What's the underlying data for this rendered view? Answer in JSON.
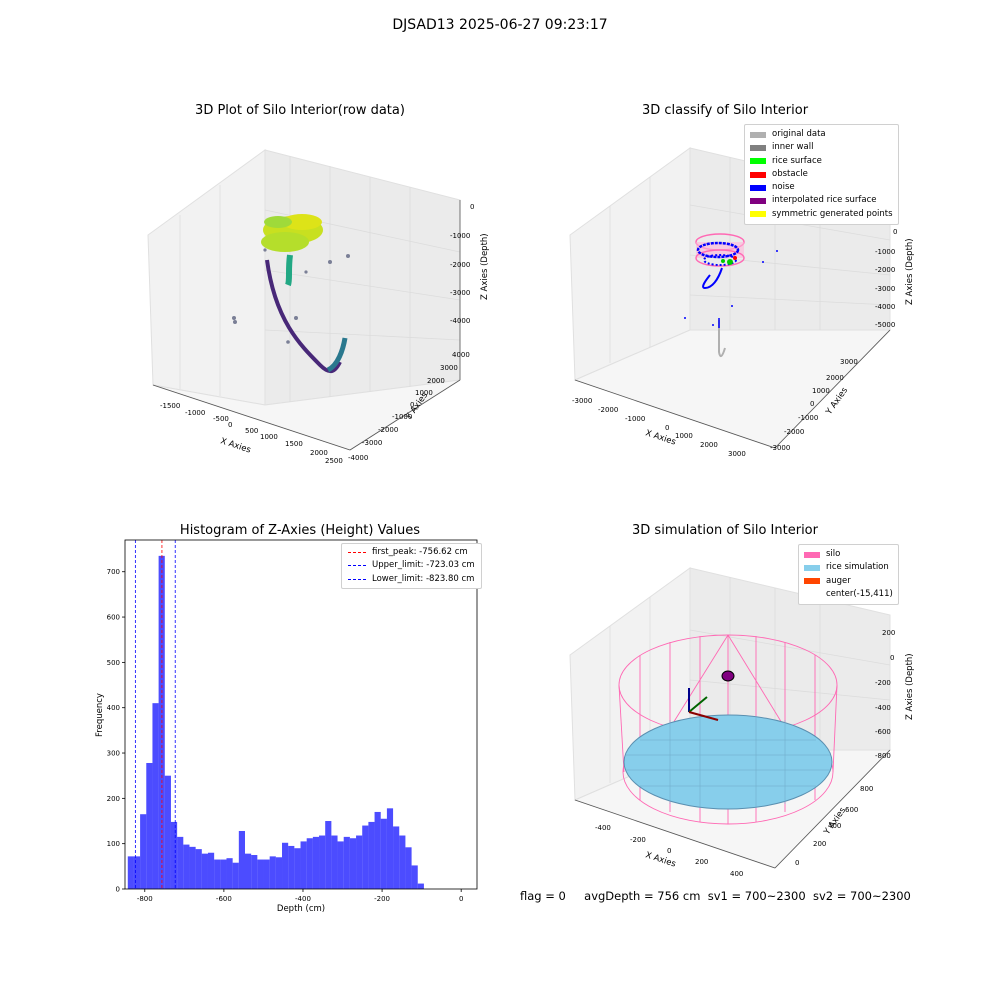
{
  "suptitle": "DJSAD13 2025-06-27 09:23:17",
  "panels": {
    "raw": {
      "title": "3D Plot of Silo Interior(row data)",
      "xlabel": "X Axies",
      "ylabel": "Y Axies",
      "zlabel": "Z Axies (Depth)",
      "xticks": [
        "-1500",
        "-1000",
        "-500",
        "0",
        "500",
        "1000",
        "1500",
        "2000",
        "2500"
      ],
      "yticks": [
        "4000",
        "3000",
        "2000",
        "1000",
        "0",
        "-1000",
        "-2000",
        "-3000",
        "-4000"
      ],
      "zticks": [
        "0",
        "-1000",
        "-2000",
        "-3000",
        "-4000"
      ]
    },
    "classify": {
      "title": "3D classify of Silo Interior",
      "xlabel": "X Axies",
      "ylabel": "Y Axies",
      "zlabel": "Z Axies (Depth)",
      "xticks": [
        "-3000",
        "-2000",
        "-1000",
        "0",
        "1000",
        "2000",
        "3000"
      ],
      "yticks": [
        "3000",
        "2000",
        "1000",
        "0",
        "-1000",
        "-2000",
        "-3000"
      ],
      "zticks": [
        "0",
        "-1000",
        "-2000",
        "-3000",
        "-4000",
        "-5000"
      ],
      "legend": [
        {
          "label": "original data",
          "color": "#b0b0b0"
        },
        {
          "label": "inner wall",
          "color": "#808080"
        },
        {
          "label": "rice surface",
          "color": "#00ff00"
        },
        {
          "label": "obstacle",
          "color": "#ff0000"
        },
        {
          "label": "noise",
          "color": "#0000ff"
        },
        {
          "label": "interpolated rice surface",
          "color": "#800080"
        },
        {
          "label": "symmetric generated points",
          "color": "#ffff00"
        }
      ]
    },
    "sim": {
      "title": "3D simulation of Silo Interior",
      "xlabel": "X Axies",
      "ylabel": "Y Axies",
      "zlabel": "Z Axies (Depth)",
      "xticks": [
        "-400",
        "-200",
        "0",
        "200",
        "400"
      ],
      "yticks": [
        "800",
        "600",
        "400",
        "200",
        "0"
      ],
      "zticks": [
        "200",
        "0",
        "-200",
        "-400",
        "-600",
        "-800"
      ],
      "legend": [
        {
          "label": "silo",
          "color": "#ff69b4"
        },
        {
          "label": "rice simulation",
          "color": "#87ceeb"
        },
        {
          "label": "auger",
          "color": "#ff4500"
        },
        {
          "label": "center(-15,411)",
          "color": "none"
        }
      ]
    }
  },
  "status": {
    "flag": "flag = 0",
    "avg": "avgDepth = 756 cm",
    "sv1": "sv1 = 700~2300",
    "sv2": "sv2 = 700~2300"
  },
  "chart_data": {
    "type": "bar",
    "title": "Histogram of Z-Axies (Height) Values",
    "xlabel": "Depth (cm)",
    "ylabel": "Frequency",
    "xlim": [
      -850,
      40
    ],
    "ylim": [
      0,
      770
    ],
    "xticks": [
      -800,
      -600,
      -400,
      -200,
      0
    ],
    "yticks": [
      0,
      100,
      200,
      300,
      400,
      500,
      600,
      700
    ],
    "bin_width": 15.6,
    "bin_start": -843,
    "color": "#0000ff",
    "values": [
      72,
      72,
      165,
      278,
      410,
      735,
      250,
      148,
      115,
      98,
      93,
      88,
      78,
      80,
      65,
      65,
      68,
      58,
      128,
      78,
      75,
      65,
      65,
      72,
      70,
      102,
      95,
      90,
      105,
      112,
      115,
      118,
      150,
      118,
      105,
      115,
      112,
      118,
      140,
      148,
      170,
      155,
      178,
      138,
      118,
      92,
      52,
      12
    ],
    "vlines": [
      {
        "label": "first_peak: -756.62 cm",
        "x": -756.62,
        "color": "#ff0000"
      },
      {
        "label": "Upper_limit: -723.03 cm",
        "x": -723.03,
        "color": "#0000ff"
      },
      {
        "label": "Lower_limit: -823.80 cm",
        "x": -823.8,
        "color": "#0000ff"
      }
    ]
  }
}
